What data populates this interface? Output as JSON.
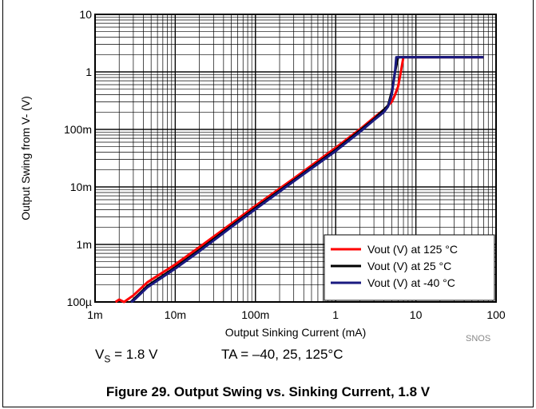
{
  "chart_data": {
    "type": "line",
    "x_scale": "log",
    "y_scale": "log",
    "xlabel": "Output Sinking Current (mA)",
    "ylabel": "Output Swing from V- (V)",
    "xlim": [
      0.001,
      100
    ],
    "ylim": [
      0.0001,
      10
    ],
    "x_ticks": [
      {
        "value": 0.001,
        "label": "1m"
      },
      {
        "value": 0.01,
        "label": "10m"
      },
      {
        "value": 0.1,
        "label": "100m"
      },
      {
        "value": 1,
        "label": "1"
      },
      {
        "value": 10,
        "label": "10"
      },
      {
        "value": 100,
        "label": "100"
      }
    ],
    "y_ticks": [
      {
        "value": 0.0001,
        "label": "100µ"
      },
      {
        "value": 0.001,
        "label": "1m"
      },
      {
        "value": 0.01,
        "label": "10m"
      },
      {
        "value": 0.1,
        "label": "100m"
      },
      {
        "value": 1,
        "label": "1"
      },
      {
        "value": 10,
        "label": "10"
      }
    ],
    "grid": true,
    "legend_position": "bottom-right",
    "series": [
      {
        "name": "Vout (V) at 125 °C",
        "color": "#ff0000",
        "x": [
          0.0018,
          0.002,
          0.0023,
          0.003,
          0.0045,
          0.01,
          0.02,
          0.05,
          0.1,
          0.3,
          1,
          2,
          3,
          4,
          5,
          5.5,
          6,
          6.5,
          7,
          10,
          30,
          70
        ],
        "y": [
          0.0001,
          0.00011,
          0.0001,
          0.00013,
          0.00022,
          0.00045,
          0.0009,
          0.0023,
          0.0047,
          0.014,
          0.048,
          0.1,
          0.16,
          0.22,
          0.3,
          0.4,
          0.55,
          1.0,
          1.8,
          1.8,
          1.8,
          1.8
        ]
      },
      {
        "name": "Vout (V) at 25 °C",
        "color": "#000000",
        "x": [
          0.0028,
          0.003,
          0.0045,
          0.01,
          0.02,
          0.05,
          0.1,
          0.3,
          1,
          2,
          3,
          4,
          4.5,
          5,
          5.5,
          6,
          10,
          30,
          70
        ],
        "y": [
          0.0001,
          0.00011,
          0.00019,
          0.0004,
          0.0008,
          0.0021,
          0.0043,
          0.013,
          0.044,
          0.095,
          0.15,
          0.22,
          0.26,
          0.45,
          1.0,
          1.8,
          1.8,
          1.8,
          1.8
        ]
      },
      {
        "name": "Vout (V) at -40 °C",
        "color": "#1a1a80",
        "x": [
          0.0028,
          0.003,
          0.0045,
          0.01,
          0.02,
          0.05,
          0.1,
          0.3,
          1,
          2,
          3,
          4,
          4.5,
          5,
          5.5,
          5.7,
          10,
          30,
          70
        ],
        "y": [
          0.0001,
          0.000105,
          0.00018,
          0.00038,
          0.00076,
          0.002,
          0.0041,
          0.0125,
          0.042,
          0.09,
          0.145,
          0.2,
          0.25,
          0.4,
          1.0,
          1.8,
          1.8,
          1.8,
          1.8
        ]
      }
    ]
  },
  "conditions": {
    "vs_symbol": "V",
    "vs_subscript": "S",
    "vs_value": " = 1.8 V",
    "ta": "TA = –40, 25, 125°C"
  },
  "credit": "SNOS",
  "figure_title": "Figure 29. Output Swing vs. Sinking Current, 1.8 V"
}
